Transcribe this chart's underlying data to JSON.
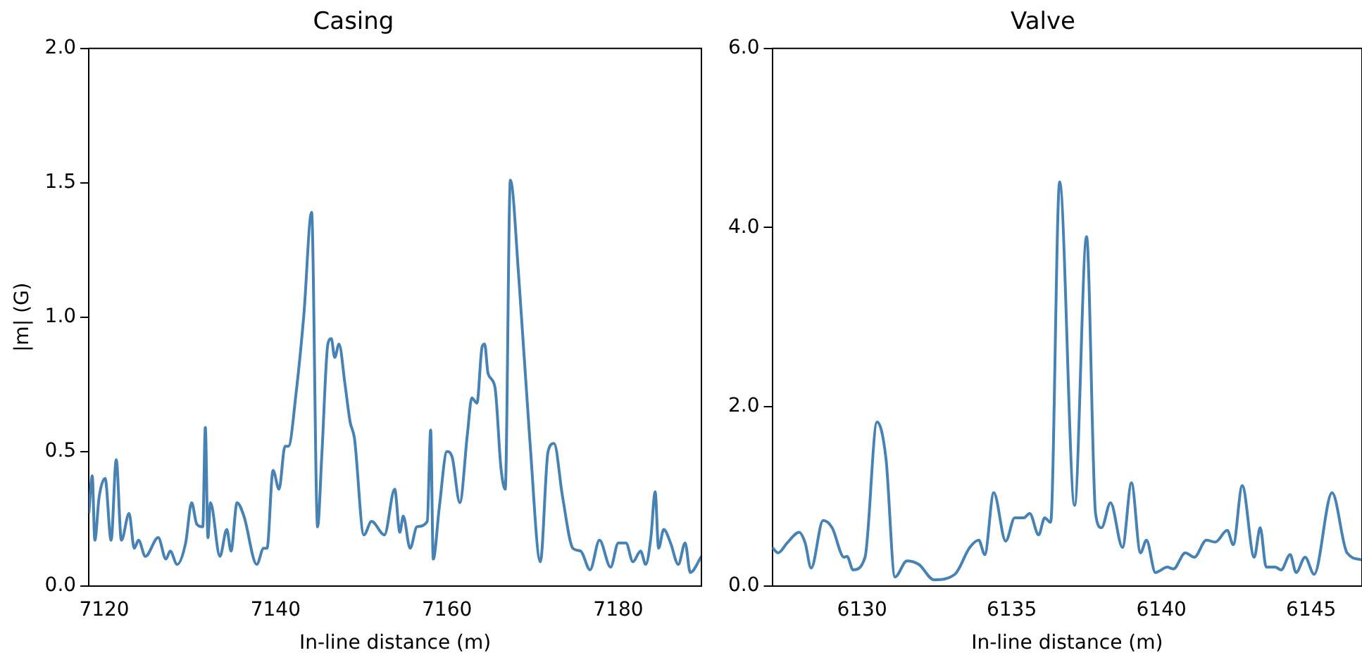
{
  "chart_data": [
    {
      "type": "line",
      "title": "Casing",
      "xlabel": "In-line distance (m)",
      "ylabel": "|m| (G)",
      "xlim": [
        7118.2,
        7189.7
      ],
      "xticks": [
        7120,
        7140,
        7160,
        7180
      ],
      "ylim": [
        0,
        2
      ],
      "yticks": [
        {
          "value": 0,
          "label": "0.0"
        },
        {
          "value": 0.5,
          "label": "0.5"
        },
        {
          "value": 1,
          "label": "1.0"
        },
        {
          "value": 1.5,
          "label": "1.5"
        },
        {
          "value": 2,
          "label": "2.0"
        }
      ],
      "grid": false,
      "legend": false,
      "marker": "none",
      "line_style": "solid",
      "series": [
        {
          "color": "#4682b4",
          "x": [
            7118.2,
            7118.6,
            7118.9,
            7119.4,
            7120.1,
            7120.8,
            7121.4,
            7122.0,
            7122.9,
            7123.5,
            7124.0,
            7124.8,
            7126.3,
            7127.2,
            7127.7,
            7128.5,
            7129.5,
            7130.2,
            7130.8,
            7131.5,
            7131.8,
            7132.1,
            7132.4,
            7133.5,
            7134.3,
            7134.8,
            7135.5,
            7136.3,
            7137.8,
            7138.6,
            7139.0,
            7139.7,
            7140.4,
            7141.1,
            7141.5,
            7142.4,
            7143.3,
            7144.2,
            7144.9,
            7145.4,
            7146.1,
            7146.5,
            7146.9,
            7147.4,
            7148.1,
            7148.7,
            7149.2,
            7150.3,
            7151.2,
            7152.7,
            7153.9,
            7154.5,
            7154.9,
            7155.7,
            7156.5,
            7157.7,
            7158.1,
            7158.4,
            7159.1,
            7160.0,
            7160.6,
            7161.5,
            7162.4,
            7162.9,
            7163.5,
            7164.1,
            7164.4,
            7164.8,
            7165.6,
            7166.3,
            7166.8,
            7167.4,
            7168.4,
            7169.7,
            7170.9,
            7171.8,
            7172.5,
            7173.5,
            7174.7,
            7175.6,
            7176.7,
            7177.8,
            7179.1,
            7180.0,
            7180.9,
            7181.7,
            7182.6,
            7183.2,
            7183.8,
            7184.3,
            7184.7,
            7185.3,
            7186.1,
            7187.0,
            7187.8,
            7188.4,
            7189.7
          ],
          "values": [
            0.27,
            0.41,
            0.17,
            0.33,
            0.4,
            0.17,
            0.47,
            0.17,
            0.27,
            0.14,
            0.17,
            0.11,
            0.18,
            0.1,
            0.13,
            0.08,
            0.16,
            0.31,
            0.23,
            0.22,
            0.59,
            0.18,
            0.31,
            0.11,
            0.21,
            0.13,
            0.31,
            0.26,
            0.08,
            0.14,
            0.14,
            0.43,
            0.36,
            0.52,
            0.52,
            0.72,
            1.01,
            1.39,
            0.22,
            0.49,
            0.9,
            0.92,
            0.85,
            0.9,
            0.75,
            0.61,
            0.55,
            0.19,
            0.24,
            0.19,
            0.36,
            0.2,
            0.26,
            0.14,
            0.22,
            0.24,
            0.58,
            0.1,
            0.29,
            0.5,
            0.48,
            0.31,
            0.57,
            0.7,
            0.68,
            0.89,
            0.9,
            0.79,
            0.74,
            0.44,
            0.36,
            1.51,
            1.14,
            0.53,
            0.09,
            0.5,
            0.53,
            0.33,
            0.14,
            0.13,
            0.06,
            0.17,
            0.07,
            0.16,
            0.16,
            0.09,
            0.13,
            0.08,
            0.18,
            0.35,
            0.14,
            0.21,
            0.16,
            0.08,
            0.16,
            0.05,
            0.11
          ]
        }
      ]
    },
    {
      "type": "line",
      "title": "Valve",
      "xlabel": "In-line distance (m)",
      "xlim": [
        6127.0,
        6146.7
      ],
      "xticks": [
        6130,
        6135,
        6140,
        6145
      ],
      "ylim": [
        0,
        6
      ],
      "yticks": [
        {
          "value": 0,
          "label": "0.0"
        },
        {
          "value": 2,
          "label": "2.0"
        },
        {
          "value": 4,
          "label": "4.0"
        },
        {
          "value": 6,
          "label": "6.0"
        }
      ],
      "grid": false,
      "legend": false,
      "marker": "none",
      "line_style": "solid",
      "series": [
        {
          "color": "#4682b4",
          "x": [
            6127.0,
            6127.2,
            6127.5,
            6127.9,
            6128.1,
            6128.3,
            6128.7,
            6129.0,
            6129.4,
            6129.5,
            6129.7,
            6130.1,
            6130.5,
            6130.8,
            6131.1,
            6131.5,
            6131.9,
            6132.4,
            6133.1,
            6133.6,
            6133.9,
            6134.1,
            6134.4,
            6134.8,
            6135.1,
            6135.4,
            6135.6,
            6135.9,
            6136.1,
            6136.3,
            6136.6,
            6137.1,
            6137.5,
            6137.8,
            6138.0,
            6138.3,
            6138.7,
            6139.0,
            6139.3,
            6139.5,
            6139.8,
            6140.2,
            6140.4,
            6140.8,
            6141.1,
            6141.5,
            6141.8,
            6142.2,
            6142.4,
            6142.7,
            6143.1,
            6143.3,
            6143.5,
            6143.8,
            6144.0,
            6144.3,
            6144.5,
            6144.8,
            6145.1,
            6145.7,
            6146.2,
            6146.7
          ],
          "values": [
            0.43,
            0.37,
            0.48,
            0.6,
            0.48,
            0.2,
            0.73,
            0.65,
            0.32,
            0.33,
            0.18,
            0.32,
            1.83,
            1.42,
            0.1,
            0.28,
            0.24,
            0.07,
            0.13,
            0.43,
            0.51,
            0.35,
            1.04,
            0.5,
            0.76,
            0.76,
            0.81,
            0.57,
            0.76,
            0.71,
            4.51,
            0.9,
            3.9,
            0.81,
            0.65,
            0.93,
            0.43,
            1.15,
            0.37,
            0.51,
            0.15,
            0.21,
            0.19,
            0.37,
            0.32,
            0.51,
            0.49,
            0.62,
            0.46,
            1.12,
            0.32,
            0.65,
            0.21,
            0.21,
            0.18,
            0.35,
            0.15,
            0.32,
            0.13,
            1.04,
            0.37,
            0.29
          ]
        }
      ]
    }
  ]
}
